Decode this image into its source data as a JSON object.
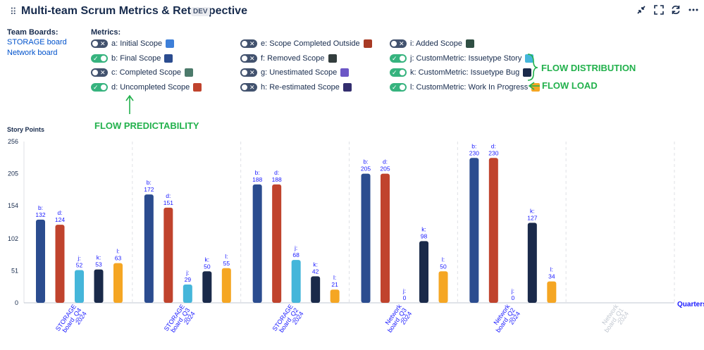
{
  "header": {
    "title": "Multi-team Scrum Metrics & Retrospective",
    "badge": "DEV",
    "icons": [
      "collapse-icon",
      "fullscreen-icon",
      "refresh-icon",
      "more-icon"
    ]
  },
  "team_boards": {
    "label": "Team Boards:",
    "items": [
      "STORAGE board",
      "Network board"
    ]
  },
  "metrics": {
    "label": "Metrics:",
    "items": [
      {
        "label": "a: Initial Scope",
        "on": false,
        "color": "#3d7fd9"
      },
      {
        "label": "b: Final Scope",
        "on": true,
        "color": "#2b4c8f"
      },
      {
        "label": "c: Completed Scope",
        "on": false,
        "color": "#4c7a6b"
      },
      {
        "label": "d: Uncompleted Scope",
        "on": true,
        "color": "#c0432d"
      },
      {
        "label": "e: Scope Completed Outside",
        "on": false,
        "color": "#a83a24"
      },
      {
        "label": "f: Removed Scope",
        "on": false,
        "color": "#333d3d"
      },
      {
        "label": "g: Unestimated Scope",
        "on": false,
        "color": "#6c57c6"
      },
      {
        "label": "h: Re-estimated Scope",
        "on": false,
        "color": "#332e6e"
      },
      {
        "label": "i: Added Scope",
        "on": false,
        "color": "#2f4f43"
      },
      {
        "label": "j: CustomMetric: Issuetype Story",
        "on": true,
        "color": "#45b6da"
      },
      {
        "label": "k: CustomMetric: Issuetype Bug",
        "on": true,
        "color": "#1a2a4a"
      },
      {
        "label": "l: CustomMetric: Work In Progress",
        "on": true,
        "color": "#f5a623"
      }
    ]
  },
  "annotations": {
    "predictability": "FLOW PREDICTABILITY",
    "distribution": "FLOW DISTRIBUTION",
    "load": "FLOW LOAD"
  },
  "chart_data": {
    "type": "bar",
    "ylabel": "Story Points",
    "xlabel": "Quarters",
    "ylim": [
      0,
      256
    ],
    "yticks": [
      0,
      51,
      102,
      154,
      205,
      256
    ],
    "categories": [
      "STORAGE board_Q4 2024",
      "STORAGE board_Q3 2024",
      "STORAGE board_Q2 2024",
      "Network board_Q3 2024",
      "Network board_Q2 2024",
      "Network board_Q1 2024"
    ],
    "category_lines": [
      [
        "STORAGE",
        "board_Q4",
        "2024"
      ],
      [
        "STORAGE",
        "board_Q3",
        "2024"
      ],
      [
        "STORAGE",
        "board_Q2",
        "2024"
      ],
      [
        "Network",
        "board_Q3",
        "2024"
      ],
      [
        "Network",
        "board_Q2",
        "2024"
      ],
      [
        "Network",
        "board_Q1",
        "2024"
      ]
    ],
    "category_faded": [
      false,
      false,
      false,
      false,
      false,
      true
    ],
    "series": [
      {
        "key": "b",
        "name": "b: Final Scope",
        "color": "#2b4c8f",
        "values": [
          132,
          172,
          188,
          205,
          230,
          null
        ]
      },
      {
        "key": "d",
        "name": "d: Uncompleted Scope",
        "color": "#c0432d",
        "values": [
          124,
          151,
          188,
          205,
          230,
          null
        ]
      },
      {
        "key": "j",
        "name": "j: CustomMetric: Issuetype Story",
        "color": "#45b6da",
        "values": [
          52,
          29,
          68,
          0,
          0,
          null
        ]
      },
      {
        "key": "k",
        "name": "k: CustomMetric: Issuetype Bug",
        "color": "#1a2a4a",
        "values": [
          53,
          50,
          42,
          98,
          127,
          null
        ]
      },
      {
        "key": "l",
        "name": "l: CustomMetric: Work In Progress",
        "color": "#f5a623",
        "values": [
          63,
          55,
          21,
          50,
          34,
          null
        ]
      }
    ],
    "label_color": "#1a1aff"
  }
}
